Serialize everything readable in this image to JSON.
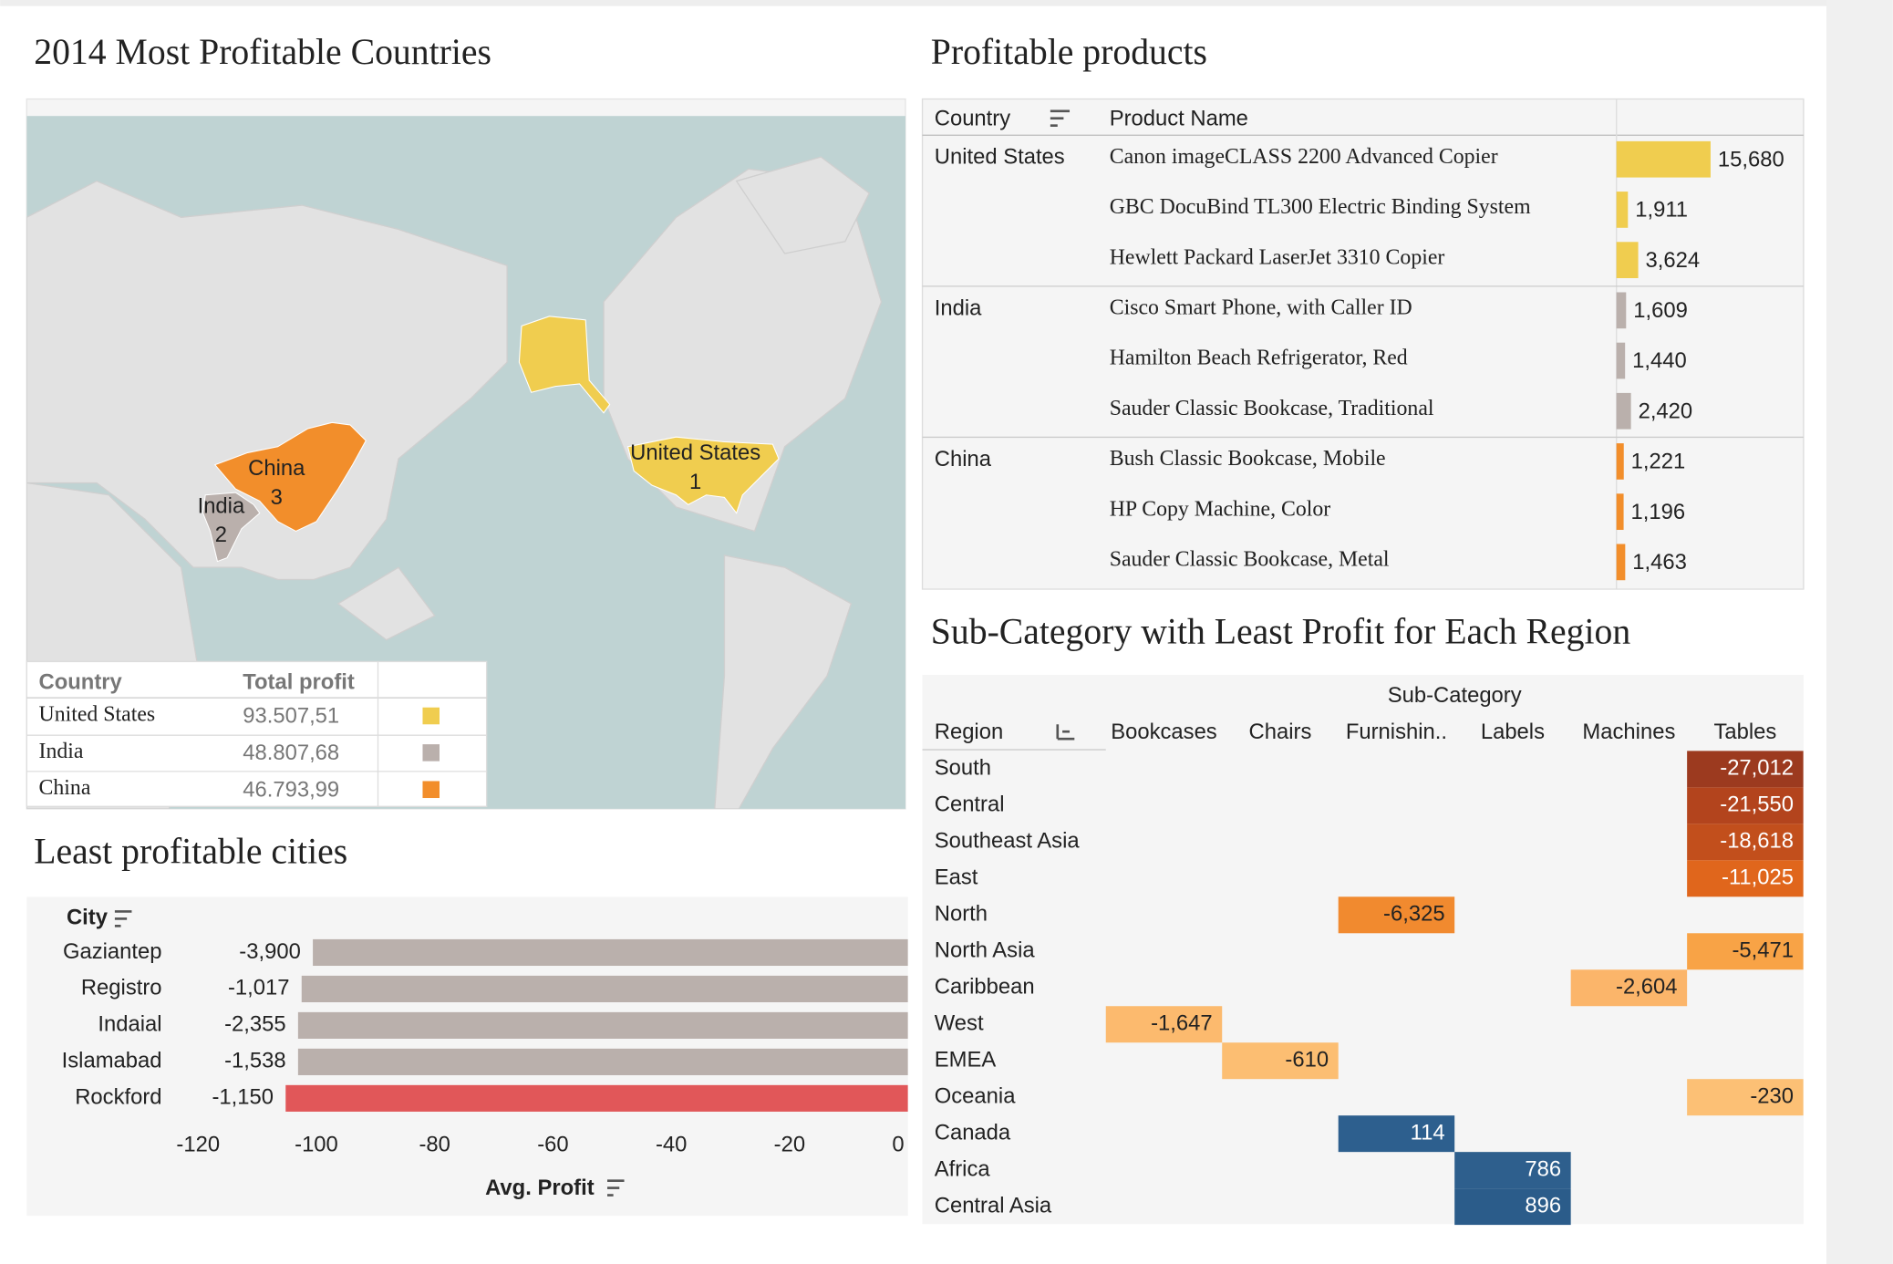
{
  "map": {
    "title": "2014 Most Profitable Countries",
    "countries": [
      {
        "name": "United States",
        "rank": 1,
        "color": "#f0cd4f"
      },
      {
        "name": "India",
        "rank": 2,
        "color": "#bab0ac"
      },
      {
        "name": "China",
        "rank": 3,
        "color": "#f28e2b"
      }
    ],
    "legend": {
      "headers": [
        "Country",
        "Total profit"
      ],
      "rows": [
        {
          "country": "United States",
          "profit": "93.507,51",
          "color": "#f0cd4f"
        },
        {
          "country": "India",
          "profit": "48.807,68",
          "color": "#bab0ac"
        },
        {
          "country": "China",
          "profit": "46.793,99",
          "color": "#f28e2b"
        }
      ]
    }
  },
  "products": {
    "title": "Profitable products",
    "headers": [
      "Country",
      "Product Name"
    ],
    "groups": [
      {
        "country": "United States",
        "color": "#f0cd4f",
        "items": [
          {
            "name": "Canon imageCLASS 2200 Advanced Copier",
            "value": 15680,
            "label": "15,680"
          },
          {
            "name": "GBC DocuBind TL300 Electric Binding System",
            "value": 1911,
            "label": "1,911"
          },
          {
            "name": "Hewlett Packard LaserJet 3310 Copier",
            "value": 3624,
            "label": "3,624"
          }
        ]
      },
      {
        "country": "India",
        "color": "#bab0ac",
        "items": [
          {
            "name": "Cisco Smart Phone, with Caller ID",
            "value": 1609,
            "label": "1,609"
          },
          {
            "name": "Hamilton Beach Refrigerator, Red",
            "value": 1440,
            "label": "1,440"
          },
          {
            "name": "Sauder Classic Bookcase, Traditional",
            "value": 2420,
            "label": "2,420"
          }
        ]
      },
      {
        "country": "China",
        "color": "#f28e2b",
        "items": [
          {
            "name": "Bush Classic Bookcase, Mobile",
            "value": 1221,
            "label": "1,221"
          },
          {
            "name": "HP Copy Machine, Color",
            "value": 1196,
            "label": "1,196"
          },
          {
            "name": "Sauder Classic Bookcase, Metal",
            "value": 1463,
            "label": "1,463"
          }
        ]
      }
    ]
  },
  "cities": {
    "type": "bar",
    "title": "Least profitable cities",
    "category_label": "City",
    "xlabel": "Avg. Profit",
    "categories": [
      "Gaziantep",
      "Registro",
      "Indaial",
      "Islamabad",
      "Rockford"
    ],
    "values": [
      -100.6,
      -102.5,
      -103.1,
      -103.1,
      -105.2
    ],
    "labels": [
      "-3,900",
      "-1,017",
      "-2,355",
      "-1,538",
      "-1,150"
    ],
    "colors": [
      "#bab0ac",
      "#bab0ac",
      "#bab0ac",
      "#bab0ac",
      "#e15759"
    ],
    "xlim": [
      -120,
      0
    ],
    "xticks": [
      -120,
      -100,
      -80,
      -60,
      -40,
      -20,
      0
    ]
  },
  "subcategory": {
    "title": "Sub-Category with Least Profit for Each Region",
    "column_header": "Sub-Category",
    "row_header": "Region",
    "columns": [
      "Bookcases",
      "Chairs",
      "Furnishin..",
      "Labels",
      "Machines",
      "Tables"
    ],
    "rows": [
      {
        "region": "South",
        "column": "Tables",
        "value": -27012,
        "label": "-27,012",
        "color": "#9c3a1f"
      },
      {
        "region": "Central",
        "column": "Tables",
        "value": -21550,
        "label": "-21,550",
        "color": "#b3441d"
      },
      {
        "region": "Southeast Asia",
        "column": "Tables",
        "value": -18618,
        "label": "-18,618",
        "color": "#c24f1c"
      },
      {
        "region": "East",
        "column": "Tables",
        "value": -11025,
        "label": "-11,025",
        "color": "#e0661c"
      },
      {
        "region": "North",
        "column": "Furnishin..",
        "value": -6325,
        "label": "-6,325",
        "color": "#f18a2f"
      },
      {
        "region": "North Asia",
        "column": "Tables",
        "value": -5471,
        "label": "-5,471",
        "color": "#f8a346"
      },
      {
        "region": "Caribbean",
        "column": "Machines",
        "value": -2604,
        "label": "-2,604",
        "color": "#fbb56a"
      },
      {
        "region": "West",
        "column": "Bookcases",
        "value": -1647,
        "label": "-1,647",
        "color": "#fcba6e"
      },
      {
        "region": "EMEA",
        "column": "Chairs",
        "value": -610,
        "label": "-610",
        "color": "#fcbe72"
      },
      {
        "region": "Oceania",
        "column": "Tables",
        "value": -230,
        "label": "-230",
        "color": "#fcc075"
      },
      {
        "region": "Canada",
        "column": "Furnishin..",
        "value": 114,
        "label": "114",
        "color": "#2d5f8e"
      },
      {
        "region": "Africa",
        "column": "Labels",
        "value": 786,
        "label": "786",
        "color": "#2e5f8d"
      },
      {
        "region": "Central Asia",
        "column": "Labels",
        "value": 896,
        "label": "896",
        "color": "#2b5c8a"
      }
    ]
  }
}
